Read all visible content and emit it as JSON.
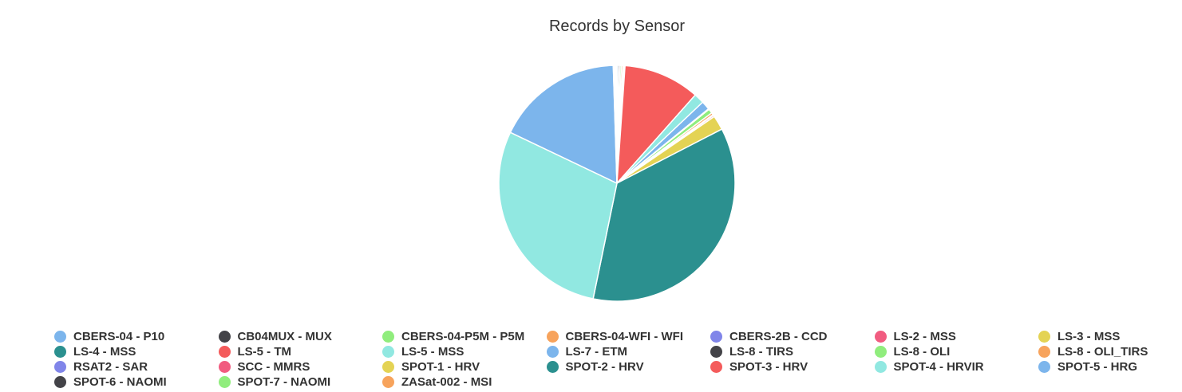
{
  "chart_data": {
    "type": "pie",
    "title": "Records by Sensor",
    "legend_position": "bottom",
    "slices": [
      {
        "label": "CBERS-04 - P10",
        "value": 0.2,
        "color": "#7cb5ec"
      },
      {
        "label": "CB04MUX - MUX",
        "value": 0.2,
        "color": "#434348"
      },
      {
        "label": "CBERS-04-P5M - P5M",
        "value": 0.2,
        "color": "#90ed7d"
      },
      {
        "label": "CBERS-04-WFI - WFI",
        "value": 0.2,
        "color": "#f7a35c"
      },
      {
        "label": "CBERS-2B - CCD",
        "value": 0.1,
        "color": "#8085e9"
      },
      {
        "label": "LS-2 - MSS",
        "value": 0.1,
        "color": "#f15c80"
      },
      {
        "label": "LS-3 - MSS",
        "value": 0.1,
        "color": "#e4d354"
      },
      {
        "label": "LS-5 - TM",
        "value": 10.5,
        "color": "#f45b5b"
      },
      {
        "label": "LS-5 - MSS",
        "value": 1.4,
        "color": "#91e8e1"
      },
      {
        "label": "LS-7 - ETM",
        "value": 1.2,
        "color": "#7cb5ec"
      },
      {
        "label": "LS-8 - TIRS",
        "value": 0.1,
        "color": "#434348"
      },
      {
        "label": "LS-8 - OLI",
        "value": 0.6,
        "color": "#90ed7d"
      },
      {
        "label": "LS-8 - OLI_TIRS",
        "value": 0.3,
        "color": "#f7a35c"
      },
      {
        "label": "RSAT2 - SAR",
        "value": 0.1,
        "color": "#8085e9"
      },
      {
        "label": "SCC - MMRS",
        "value": 0.2,
        "color": "#f15c80"
      },
      {
        "label": "SPOT-1 - HRV",
        "value": 2.0,
        "color": "#e4d354"
      },
      {
        "label": "LS-4 - MSS",
        "value": 36.0,
        "color": "#2b908f"
      },
      {
        "label": "SPOT-4 - HRVIR",
        "value": 29.0,
        "color": "#91e8e1"
      },
      {
        "label": "SPOT-5 - HRG",
        "value": 17.5,
        "color": "#7cb5ec"
      },
      {
        "label": "SPOT-2 - HRV",
        "value": 0.1,
        "color": "#2b908f"
      },
      {
        "label": "SPOT-3 - HRV",
        "value": 0.1,
        "color": "#f45b5b"
      },
      {
        "label": "SPOT-6 - NAOMI",
        "value": 0.1,
        "color": "#434348"
      },
      {
        "label": "SPOT-7 - NAOMI",
        "value": 0.1,
        "color": "#90ed7d"
      },
      {
        "label": "ZASat-002 - MSI",
        "value": 0.1,
        "color": "#f7a35c"
      }
    ],
    "legend": [
      {
        "label": "CBERS-04 - P10",
        "color": "#7cb5ec"
      },
      {
        "label": "CB04MUX - MUX",
        "color": "#434348"
      },
      {
        "label": "CBERS-04-P5M - P5M",
        "color": "#90ed7d"
      },
      {
        "label": "CBERS-04-WFI - WFI",
        "color": "#f7a35c"
      },
      {
        "label": "CBERS-2B - CCD",
        "color": "#8085e9"
      },
      {
        "label": "LS-2 - MSS",
        "color": "#f15c80"
      },
      {
        "label": "LS-3 - MSS",
        "color": "#e4d354"
      },
      {
        "label": "LS-4 - MSS",
        "color": "#2b908f"
      },
      {
        "label": "LS-5 - TM",
        "color": "#f45b5b"
      },
      {
        "label": "LS-5 - MSS",
        "color": "#91e8e1"
      },
      {
        "label": "LS-7 - ETM",
        "color": "#7cb5ec"
      },
      {
        "label": "LS-8 - TIRS",
        "color": "#434348"
      },
      {
        "label": "LS-8 - OLI",
        "color": "#90ed7d"
      },
      {
        "label": "LS-8 - OLI_TIRS",
        "color": "#f7a35c"
      },
      {
        "label": "RSAT2 - SAR",
        "color": "#8085e9"
      },
      {
        "label": "SCC - MMRS",
        "color": "#f15c80"
      },
      {
        "label": "SPOT-1 - HRV",
        "color": "#e4d354"
      },
      {
        "label": "SPOT-2 - HRV",
        "color": "#2b908f"
      },
      {
        "label": "SPOT-3 - HRV",
        "color": "#f45b5b"
      },
      {
        "label": "SPOT-4 - HRVIR",
        "color": "#91e8e1"
      },
      {
        "label": "SPOT-5 - HRG",
        "color": "#7cb5ec"
      },
      {
        "label": "SPOT-6 - NAOMI",
        "color": "#434348"
      },
      {
        "label": "SPOT-7 - NAOMI",
        "color": "#90ed7d"
      },
      {
        "label": "ZASat-002 - MSI",
        "color": "#f7a35c"
      }
    ]
  }
}
